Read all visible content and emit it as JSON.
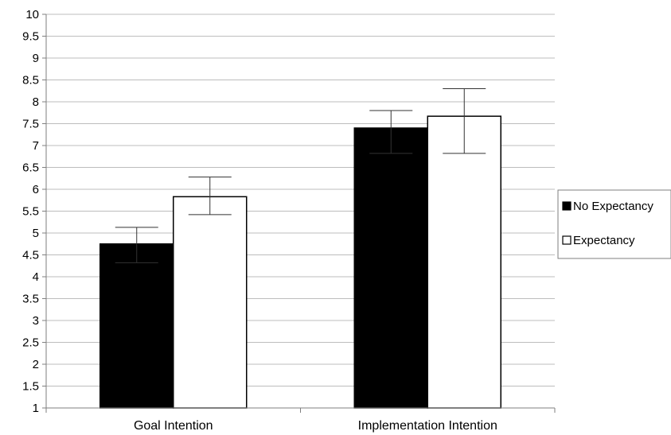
{
  "chart_data": {
    "type": "bar",
    "title": "",
    "xlabel": "",
    "ylabel": "",
    "ylim": [
      1,
      10
    ],
    "ytick_step": 0.5,
    "yticks": [
      "1",
      "1.5",
      "2",
      "2.5",
      "3",
      "3.5",
      "4",
      "4.5",
      "5",
      "5.5",
      "6",
      "6.5",
      "7",
      "7.5",
      "8",
      "8.5",
      "9",
      "9.5",
      "10"
    ],
    "grid": true,
    "legend_position": "right",
    "categories": [
      "Goal Intention",
      "Implementation Intention"
    ],
    "series": [
      {
        "name": "No Expectancy",
        "color": "#000000",
        "values": [
          4.75,
          7.4
        ],
        "error_low": [
          4.32,
          6.82
        ],
        "error_high": [
          5.13,
          7.8
        ]
      },
      {
        "name": "Expectancy",
        "color": "#ffffff",
        "values": [
          5.83,
          7.67
        ],
        "error_low": [
          5.42,
          6.82
        ],
        "error_high": [
          6.28,
          8.3
        ]
      }
    ]
  }
}
